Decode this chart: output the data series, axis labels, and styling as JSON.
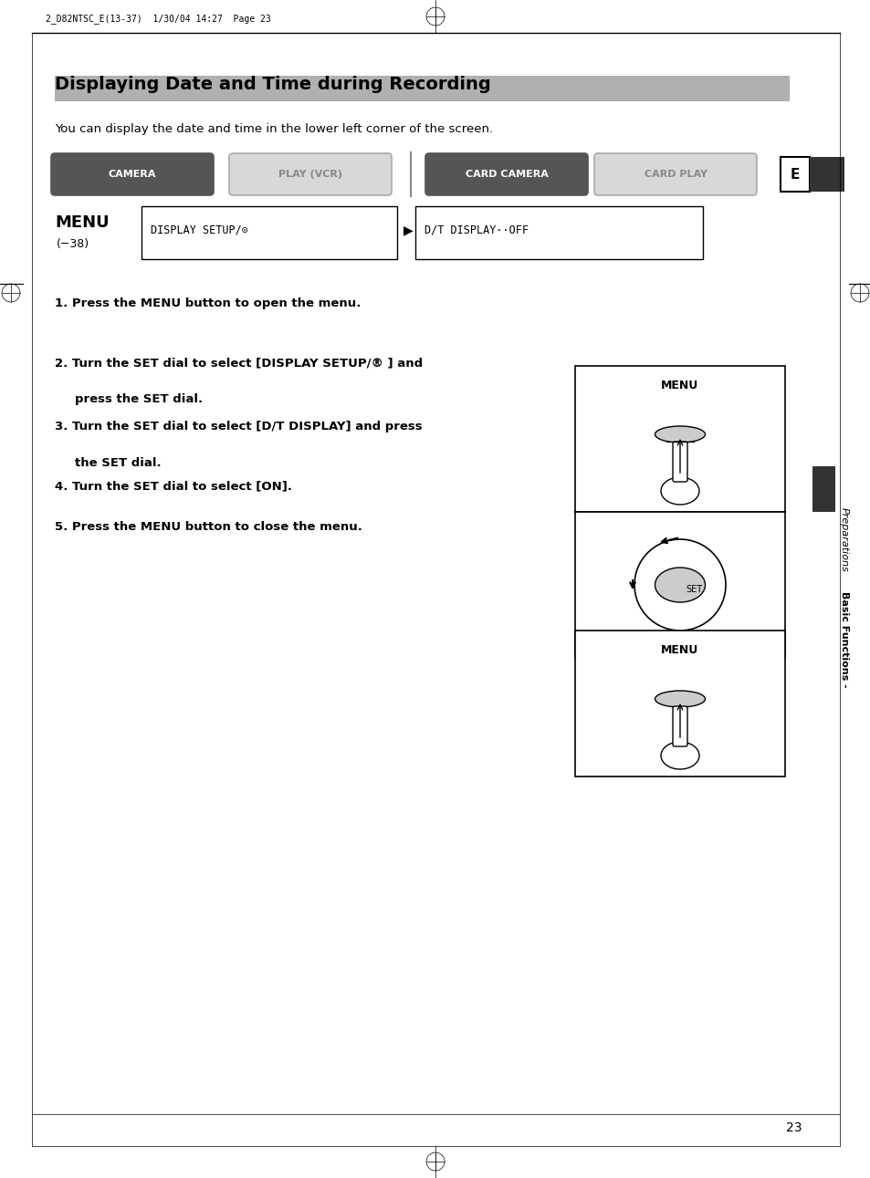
{
  "bg_color": "#ffffff",
  "page_width": 9.54,
  "page_height": 12.91,
  "header_text": "2_D82NTSC_E(13-37)  1/30/04 14:27  Page 23",
  "title": "Displaying Date and Time during Recording",
  "subtitle": "You can display the date and time in the lower left corner of the screen.",
  "camera_buttons": [
    "CAMERA",
    "PLAY (VCR)",
    "CARD CAMERA",
    "CARD PLAY"
  ],
  "camera_active": [
    true,
    false,
    true,
    false
  ],
  "e_label": "E",
  "menu_label": "MENU",
  "menu_ref": "(−38)",
  "menu_item1": "DISPLAY SETUP/",
  "menu_item2": "D/T DISPLAY··OFF",
  "steps": [
    "1. Press the MENU button to open the menu.",
    "2. Turn the SET dial to select [DISPLAY SETUP/® ] and\n    press the SET dial.",
    "3. Turn the SET dial to select [D/T DISPLAY] and press\n    the SET dial.",
    "4. Turn the SET dial to select [ON].",
    "5. Press the MENU button to close the menu."
  ],
  "sidebar_text1": "Basic Functions -",
  "sidebar_text2": "Preparations",
  "page_number": "23"
}
